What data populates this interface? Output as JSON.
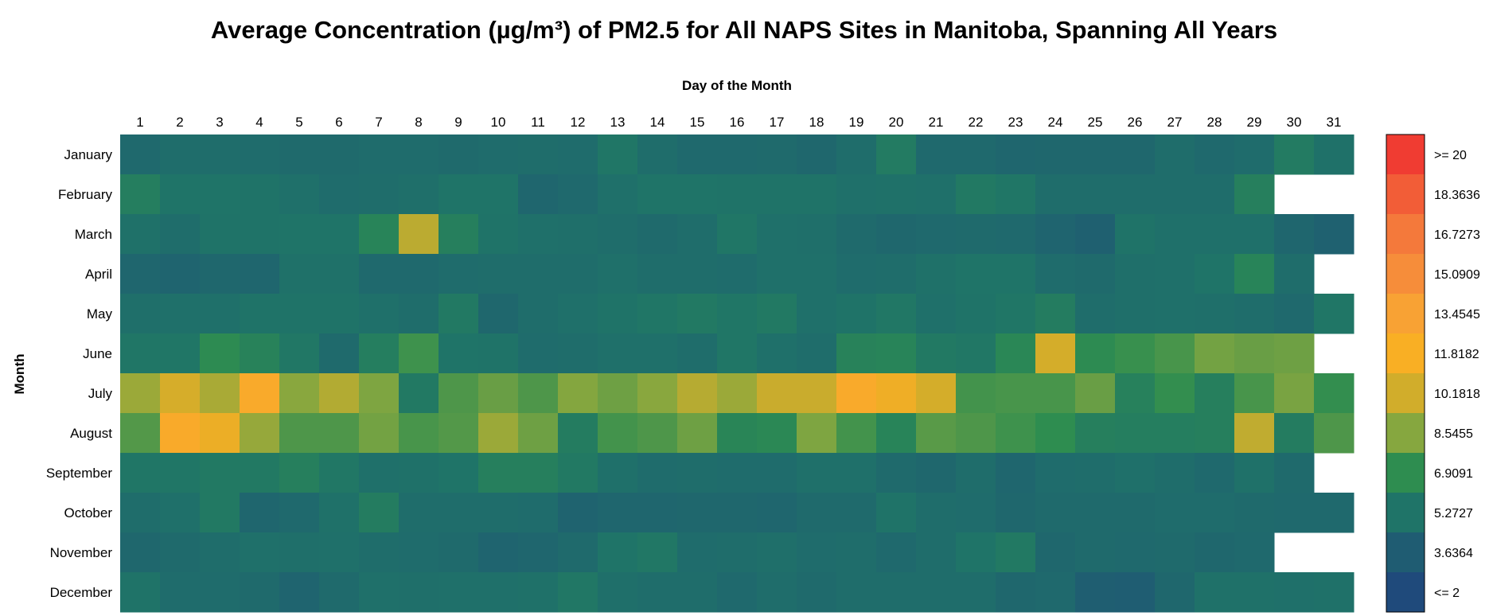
{
  "chart_data": {
    "type": "heatmap",
    "title": "Average Concentration (µg/m³) of PM2.5 for All NAPS Sites in Manitoba, Spanning All Years",
    "xlabel": "Day of the Month",
    "ylabel": "Month",
    "x": [
      "1",
      "2",
      "3",
      "4",
      "5",
      "6",
      "7",
      "8",
      "9",
      "10",
      "11",
      "12",
      "13",
      "14",
      "15",
      "16",
      "17",
      "18",
      "19",
      "20",
      "21",
      "22",
      "23",
      "24",
      "25",
      "26",
      "27",
      "28",
      "29",
      "30",
      "31"
    ],
    "y": [
      "January",
      "February",
      "March",
      "April",
      "May",
      "June",
      "July",
      "August",
      "September",
      "October",
      "November",
      "December"
    ],
    "values": [
      [
        4.5,
        4.8,
        4.8,
        4.7,
        4.6,
        4.6,
        4.7,
        4.7,
        4.6,
        4.7,
        4.8,
        4.7,
        5.4,
        4.8,
        4.5,
        4.5,
        4.6,
        4.4,
        4.8,
        5.7,
        4.5,
        4.5,
        4.3,
        4.4,
        4.4,
        4.4,
        4.8,
        4.5,
        4.7,
        5.7,
        5.1
      ],
      [
        5.9,
        5.3,
        5.3,
        5.2,
        5.0,
        4.7,
        4.8,
        4.9,
        5.3,
        5.3,
        4.3,
        4.5,
        5.0,
        5.3,
        5.3,
        5.2,
        5.2,
        5.2,
        5.0,
        5.1,
        5.0,
        5.6,
        5.4,
        4.8,
        4.8,
        4.8,
        4.8,
        4.8,
        6.0,
        null,
        null
      ],
      [
        5.1,
        4.8,
        5.2,
        5.2,
        5.3,
        5.3,
        6.3,
        9.7,
        6.0,
        5.2,
        5.0,
        4.9,
        4.8,
        4.6,
        4.8,
        5.4,
        5.0,
        4.9,
        4.6,
        4.4,
        4.5,
        4.6,
        4.5,
        4.2,
        3.9,
        5.2,
        5.0,
        5.0,
        5.0,
        4.3,
        4.0
      ],
      [
        4.3,
        4.2,
        4.4,
        4.3,
        5.1,
        5.1,
        4.5,
        4.5,
        4.7,
        4.8,
        4.8,
        4.8,
        5.0,
        4.8,
        4.8,
        4.7,
        5.0,
        5.0,
        4.7,
        4.8,
        5.1,
        5.3,
        5.3,
        4.7,
        4.6,
        4.9,
        5.0,
        5.3,
        6.3,
        4.8,
        null
      ],
      [
        4.9,
        5.0,
        5.0,
        5.2,
        5.2,
        5.2,
        5.0,
        4.8,
        5.6,
        4.4,
        4.8,
        5.0,
        5.2,
        5.4,
        5.6,
        5.4,
        5.6,
        5.0,
        5.2,
        5.5,
        5.0,
        5.2,
        5.4,
        5.8,
        4.8,
        4.9,
        5.0,
        4.9,
        4.8,
        4.5,
        5.4
      ],
      [
        5.4,
        5.4,
        6.8,
        6.2,
        5.5,
        4.6,
        5.9,
        7.2,
        5.3,
        5.2,
        4.7,
        4.8,
        5.0,
        5.0,
        4.8,
        5.4,
        5.0,
        4.8,
        6.2,
        6.3,
        5.6,
        5.5,
        6.5,
        10.3,
        6.8,
        7.1,
        7.4,
        8.2,
        8.0,
        8.1,
        null
      ],
      [
        9.0,
        10.4,
        9.3,
        12.5,
        8.6,
        9.5,
        8.4,
        5.6,
        7.5,
        8.0,
        7.5,
        8.5,
        8.1,
        8.6,
        9.6,
        9.0,
        10.0,
        10.0,
        12.5,
        11.4,
        10.3,
        7.3,
        7.4,
        7.4,
        8.0,
        6.1,
        7.0,
        6.0,
        7.4,
        8.3,
        7.0
      ],
      [
        7.6,
        12.4,
        11.3,
        8.9,
        7.5,
        7.5,
        8.2,
        7.4,
        7.6,
        9.0,
        8.1,
        5.8,
        7.3,
        7.5,
        8.1,
        6.4,
        6.6,
        8.4,
        7.3,
        6.3,
        7.7,
        7.5,
        7.2,
        6.9,
        6.0,
        5.9,
        5.9,
        6.0,
        9.8,
        5.8,
        7.5
      ],
      [
        5.4,
        5.4,
        5.6,
        5.6,
        6.0,
        5.5,
        5.0,
        5.1,
        5.3,
        6.0,
        6.0,
        5.6,
        5.0,
        4.7,
        4.8,
        4.7,
        4.7,
        5.0,
        5.0,
        4.6,
        4.4,
        4.8,
        4.3,
        4.7,
        4.8,
        5.0,
        4.8,
        4.5,
        5.1,
        4.6,
        null
      ],
      [
        4.8,
        5.0,
        5.6,
        4.3,
        4.5,
        5.1,
        5.8,
        4.8,
        4.8,
        4.8,
        4.7,
        4.1,
        4.3,
        4.3,
        4.4,
        4.4,
        4.3,
        4.6,
        4.6,
        5.2,
        4.8,
        4.7,
        4.4,
        4.6,
        4.6,
        4.6,
        4.7,
        4.7,
        4.6,
        4.5,
        4.5
      ],
      [
        4.4,
        4.6,
        4.8,
        5.0,
        4.9,
        5.0,
        4.8,
        4.7,
        4.6,
        4.2,
        4.3,
        4.6,
        5.3,
        5.5,
        4.7,
        4.8,
        4.9,
        4.7,
        4.8,
        4.5,
        4.8,
        5.3,
        5.6,
        4.4,
        4.6,
        4.5,
        4.6,
        4.4,
        4.5,
        null,
        null
      ],
      [
        5.2,
        4.7,
        4.7,
        4.6,
        4.2,
        4.6,
        5.0,
        4.9,
        5.0,
        5.0,
        5.1,
        5.5,
        4.9,
        4.8,
        4.8,
        4.5,
        4.8,
        4.6,
        4.8,
        4.8,
        4.8,
        4.8,
        4.4,
        4.5,
        3.8,
        3.7,
        4.4,
        5.1,
        5.1,
        5.0,
        5.1
      ]
    ],
    "colorbar": {
      "labels": [
        ">= 20",
        "18.3636",
        "16.7273",
        "15.0909",
        "13.4545",
        "11.8182",
        "10.1818",
        "8.5455",
        "6.9091",
        "5.2727",
        "3.6364",
        "<= 2"
      ],
      "colors": [
        "#f03c32",
        "#f25d37",
        "#f4793b",
        "#f68d3a",
        "#f8a234",
        "#f9af24",
        "#d1ad2b",
        "#86a73f",
        "#2e8d50",
        "#1f7468",
        "#1f5c72",
        "#1f4a7b"
      ],
      "min": 2,
      "max": 20
    }
  }
}
